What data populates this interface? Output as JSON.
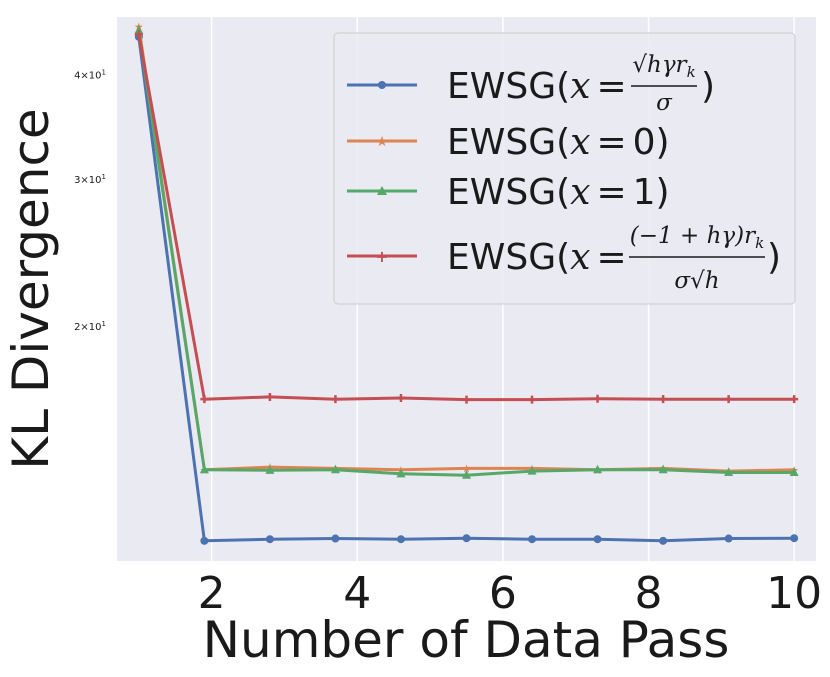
{
  "chart_data": {
    "type": "line",
    "title": "",
    "xlabel": "Number of Data Pass",
    "ylabel": "KL Divergence",
    "yscale": "log",
    "xlim": [
      0.7,
      10.3
    ],
    "ylim": [
      10.5,
      47.0
    ],
    "x": [
      1.0,
      1.9,
      2.8,
      3.7,
      4.6,
      5.5,
      6.4,
      7.3,
      8.2,
      9.1,
      10.0
    ],
    "xticks": [
      2,
      4,
      6,
      8,
      10
    ],
    "xtick_labels": [
      "2",
      "4",
      "6",
      "8",
      "10"
    ],
    "yticks": [
      40,
      30,
      20
    ],
    "ytick_labels": [
      {
        "base": "4",
        "times": "×",
        "pow": "10",
        "exp": "1"
      },
      {
        "base": "3",
        "times": "×",
        "pow": "10",
        "exp": "1"
      },
      {
        "base": "2",
        "times": "×",
        "pow": "10",
        "exp": "1"
      }
    ],
    "grid": true,
    "legend_position": "top-right",
    "series": [
      {
        "name": "EWSG(x = √h γ r_k / σ)",
        "color": "#4c72b0",
        "marker": "circle",
        "values": [
          44.5,
          11.1,
          11.15,
          11.17,
          11.15,
          11.18,
          11.15,
          11.15,
          11.1,
          11.17,
          11.18
        ]
      },
      {
        "name": "EWSG(x = 0)",
        "color": "#dd8452",
        "marker": "star",
        "values": [
          45.8,
          13.5,
          13.6,
          13.55,
          13.5,
          13.55,
          13.55,
          13.5,
          13.55,
          13.45,
          13.5
        ]
      },
      {
        "name": "EWSG(x = 1)",
        "color": "#55a868",
        "marker": "triangle",
        "values": [
          45.3,
          13.5,
          13.48,
          13.5,
          13.35,
          13.3,
          13.45,
          13.5,
          13.5,
          13.4,
          13.4
        ]
      },
      {
        "name": "EWSG(x = (−1 + hγ) r_k / (σ√h))",
        "color": "#c44e52",
        "marker": "plus",
        "values": [
          44.8,
          16.4,
          16.5,
          16.4,
          16.45,
          16.38,
          16.38,
          16.42,
          16.4,
          16.4,
          16.4
        ]
      }
    ]
  },
  "legend": {
    "prefix": "EWSG(",
    "suffix": ")",
    "items": [
      {
        "x": "x",
        "eq": "=",
        "num": "√hγr",
        "num_sub": "k",
        "den": "σ",
        "plain": ""
      },
      {
        "x": "x",
        "eq": "=",
        "plain": "0"
      },
      {
        "x": "x",
        "eq": "=",
        "plain": "1"
      },
      {
        "x": "x",
        "eq": "=",
        "num": "(−1 + hγ)r",
        "num_sub": "k",
        "den": "σ√h",
        "plain": ""
      }
    ]
  }
}
